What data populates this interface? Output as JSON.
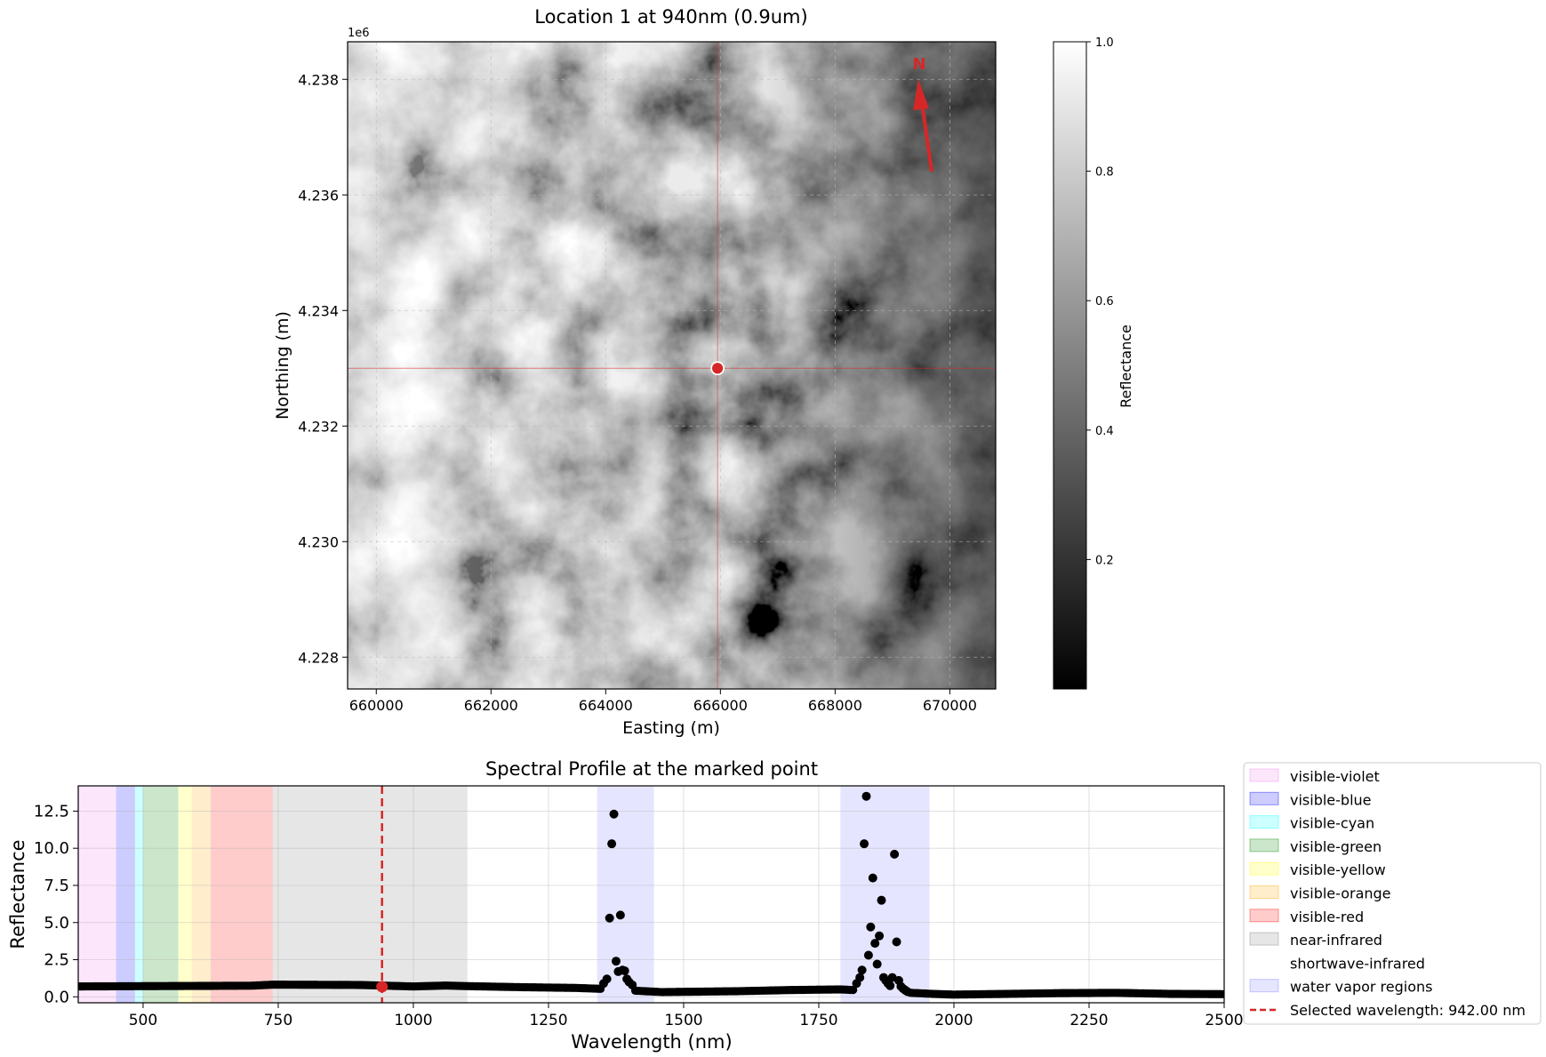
{
  "chart_data": [
    {
      "type": "heatmap",
      "title": "Location 1 at 940nm (0.9um)",
      "xlabel": "Easting (m)",
      "ylabel": "Northing (m)",
      "y_offset_label": "1e6",
      "xlim": [
        659500,
        670800
      ],
      "ylim": [
        4227450,
        4238650
      ],
      "x_ticks": [
        660000,
        662000,
        664000,
        666000,
        668000,
        670000
      ],
      "x_tick_labels": [
        "660000",
        "662000",
        "664000",
        "666000",
        "668000",
        "670000"
      ],
      "y_ticks": [
        4228000,
        4230000,
        4232000,
        4234000,
        4236000,
        4238000
      ],
      "y_tick_labels": [
        "4.228",
        "4.230",
        "4.232",
        "4.234",
        "4.236",
        "4.238"
      ],
      "marker": {
        "easting": 665950,
        "northing": 4233000,
        "color": "#d62728"
      },
      "north_arrow": {
        "label": "N",
        "color": "#d62728"
      },
      "grid": true,
      "colorbar": {
        "label": "Reflectance",
        "range": [
          0.0,
          1.0
        ],
        "ticks": [
          0.2,
          0.4,
          0.6,
          0.8,
          1.0
        ],
        "tick_labels": [
          "0.2",
          "0.4",
          "0.6",
          "0.8",
          "1.0"
        ],
        "colormap": "gray"
      }
    },
    {
      "type": "scatter",
      "title": "Spectral Profile at the marked point",
      "xlabel": "Wavelength (nm)",
      "ylabel": "Reflectance",
      "xlim": [
        380,
        2500
      ],
      "ylim": [
        -0.4,
        14.2
      ],
      "x_ticks": [
        500,
        750,
        1000,
        1250,
        1500,
        1750,
        2000,
        2250,
        2500
      ],
      "x_tick_labels": [
        "500",
        "750",
        "1000",
        "1250",
        "1500",
        "1750",
        "2000",
        "2250",
        "2500"
      ],
      "y_ticks": [
        0.0,
        2.5,
        5.0,
        7.5,
        10.0,
        12.5
      ],
      "y_tick_labels": [
        "0.0",
        "2.5",
        "5.0",
        "7.5",
        "10.0",
        "12.5"
      ],
      "grid": true,
      "legend_position": "right",
      "bands": [
        {
          "name": "visible-violet",
          "range": [
            380,
            450
          ],
          "color": "#ee82ee",
          "alpha": 0.2
        },
        {
          "name": "visible-blue",
          "range": [
            450,
            485
          ],
          "color": "#0000ff",
          "alpha": 0.2
        },
        {
          "name": "visible-cyan",
          "range": [
            485,
            500
          ],
          "color": "#00ffff",
          "alpha": 0.2
        },
        {
          "name": "visible-green",
          "range": [
            500,
            565
          ],
          "color": "#008000",
          "alpha": 0.2
        },
        {
          "name": "visible-yellow",
          "range": [
            565,
            590
          ],
          "color": "#ffff00",
          "alpha": 0.2
        },
        {
          "name": "visible-orange",
          "range": [
            590,
            625
          ],
          "color": "#ffa500",
          "alpha": 0.2
        },
        {
          "name": "visible-red",
          "range": [
            625,
            740
          ],
          "color": "#ff0000",
          "alpha": 0.2
        },
        {
          "name": "near-infrared",
          "range": [
            740,
            1100
          ],
          "color": "#808080",
          "alpha": 0.2
        },
        {
          "name": "shortwave-infrared",
          "range": [
            1100,
            2500
          ],
          "color": "#ffffff",
          "alpha": 0.2
        },
        {
          "name": "water vapor regions",
          "range": [
            1340,
            1445
          ],
          "color": "#0000ff",
          "alpha": 0.1
        },
        {
          "name": "water vapor regions",
          "range": [
            1790,
            1955
          ],
          "color": "#0000ff",
          "alpha": 0.1
        }
      ],
      "legend": [
        "visible-violet",
        "visible-blue",
        "visible-cyan",
        "visible-green",
        "visible-yellow",
        "visible-orange",
        "visible-red",
        "near-infrared",
        "shortwave-infrared",
        "water vapor regions",
        "Selected wavelength: 942.00 nm"
      ],
      "selected_wavelength": 942.0,
      "selected_value": 0.68,
      "selected_color": "#d62728",
      "profile_knots": {
        "x": [
          380,
          500,
          700,
          740,
          900,
          1000,
          1060,
          1100,
          1200,
          1300,
          1340,
          1460,
          1600,
          1700,
          1790,
          1960,
          2000,
          2100,
          2200,
          2300,
          2400,
          2500
        ],
        "y": [
          0.7,
          0.72,
          0.75,
          0.82,
          0.8,
          0.7,
          0.76,
          0.72,
          0.65,
          0.6,
          0.55,
          0.32,
          0.38,
          0.46,
          0.5,
          0.2,
          0.15,
          0.2,
          0.25,
          0.27,
          0.2,
          0.18
        ]
      },
      "peaks": {
        "x": [
          1352,
          1358,
          1363,
          1367,
          1371,
          1375,
          1379,
          1383,
          1387,
          1391,
          1395,
          1399,
          1405,
          1820,
          1826,
          1830,
          1834,
          1838,
          1842,
          1846,
          1850,
          1854,
          1858,
          1862,
          1866,
          1870,
          1874,
          1878,
          1882,
          1886,
          1890,
          1894,
          1898,
          1902,
          1906,
          1910,
          1914
        ],
        "y": [
          0.9,
          1.2,
          5.3,
          10.3,
          12.3,
          2.4,
          1.7,
          5.5,
          1.8,
          1.75,
          1.2,
          1.0,
          0.8,
          0.9,
          1.3,
          1.8,
          10.3,
          13.5,
          2.8,
          4.7,
          8.0,
          3.6,
          2.2,
          4.1,
          6.5,
          1.3,
          1.1,
          0.9,
          0.75,
          1.3,
          9.6,
          3.7,
          1.1,
          0.7,
          0.55,
          0.45,
          0.35
        ]
      }
    }
  ]
}
